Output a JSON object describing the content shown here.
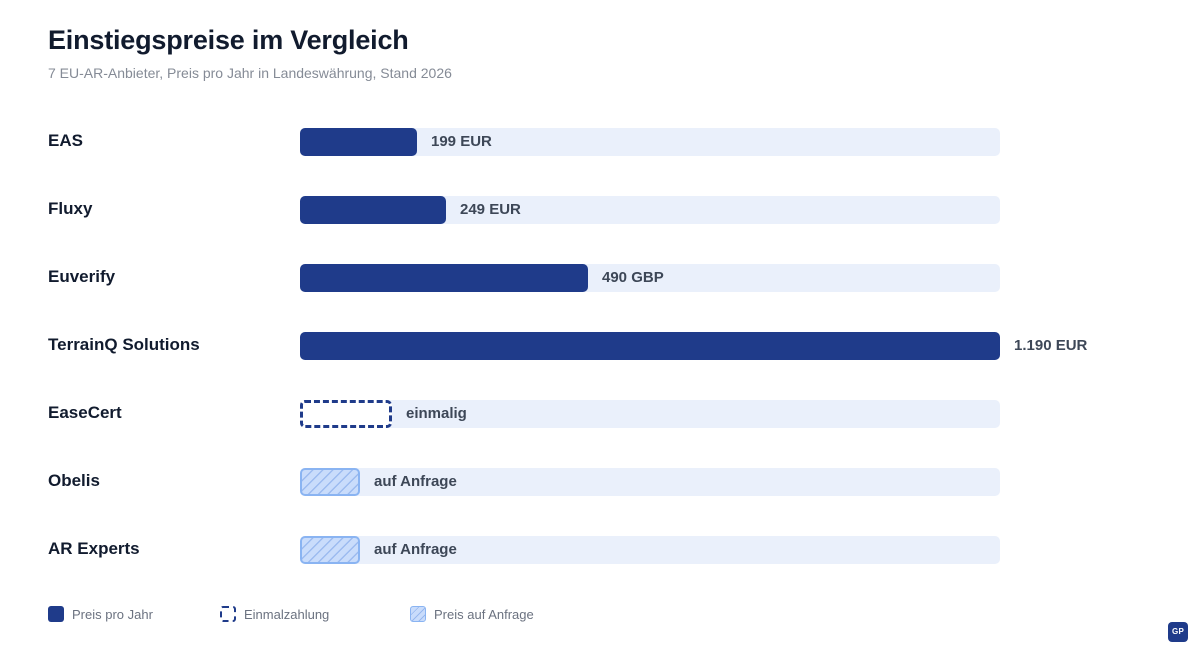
{
  "chart_data": {
    "type": "bar",
    "orientation": "horizontal",
    "title": "Einstiegspreise im Vergleich",
    "subtitle": "7 EU-AR-Anbieter, Preis pro Jahr in Landeswährung, Stand 2026",
    "xlim": [
      0,
      1190
    ],
    "items": [
      {
        "category": "EAS",
        "value": 199,
        "kind": "annual",
        "value_label": "199 EUR"
      },
      {
        "category": "Fluxy",
        "value": 249,
        "kind": "annual",
        "value_label": "249 EUR"
      },
      {
        "category": "Euverify",
        "value": 490,
        "kind": "annual",
        "value_label": "490 GBP"
      },
      {
        "category": "TerrainQ Solutions",
        "value": 1190,
        "kind": "annual",
        "value_label": "1.190 EUR"
      },
      {
        "category": "EaseCert",
        "value": null,
        "kind": "onetime",
        "value_label": "einmalig"
      },
      {
        "category": "Obelis",
        "value": null,
        "kind": "request",
        "value_label": "auf Anfrage"
      },
      {
        "category": "AR Experts",
        "value": null,
        "kind": "request",
        "value_label": "auf Anfrage"
      }
    ],
    "legend": [
      {
        "kind": "annual",
        "label": "Preis pro Jahr"
      },
      {
        "kind": "onetime",
        "label": "Einmalzahlung"
      },
      {
        "kind": "request",
        "label": "Preis auf Anfrage"
      }
    ],
    "legend_placement": "bottom-left",
    "grid": false,
    "colors": {
      "annual": "#1f3b8a",
      "track": "#eaf0fb",
      "request_fill": "#c9dcfb",
      "request_border": "#8ab4f2"
    }
  },
  "badge": {
    "label": "GP"
  }
}
